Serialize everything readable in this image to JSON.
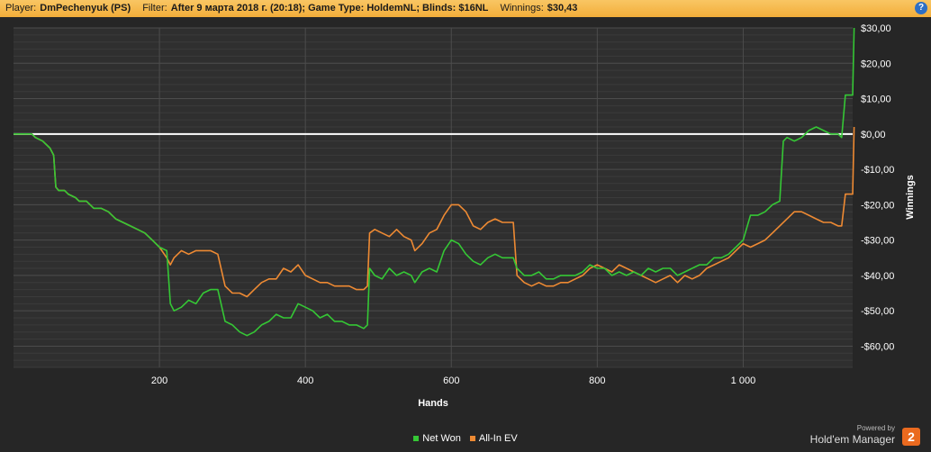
{
  "header": {
    "player_label": "Player:",
    "player_value": "DmPechenyuk (PS)",
    "filter_label": "Filter:",
    "filter_value": "After 9 марта 2018 г. (20:18); Game Type: HoldemNL; Blinds: $16NL",
    "winnings_label": "Winnings:",
    "winnings_value": "$30,43",
    "help_glyph": "?"
  },
  "brand": {
    "powered_by": "Powered by",
    "name": "Hold'em Manager",
    "badge": "2"
  },
  "chart_data": {
    "type": "line",
    "xlabel": "Hands",
    "ylabel": "Winnings",
    "xlim": [
      0,
      1150
    ],
    "ylim": [
      -66,
      30
    ],
    "x_ticks": [
      200,
      400,
      600,
      800,
      1000
    ],
    "x_tick_labels": [
      "200",
      "400",
      "600",
      "800",
      "1 000"
    ],
    "y_ticks": [
      30,
      20,
      10,
      0,
      -10,
      -20,
      -30,
      -40,
      -50,
      -60
    ],
    "y_tick_labels": [
      "$30,00",
      "$20,00",
      "$10,00",
      "$0,00",
      "-$10,00",
      "-$20,00",
      "-$30,00",
      "-$40,00",
      "-$50,00",
      "-$60,00"
    ],
    "zero_line": 0,
    "legend_position": "bottom",
    "grid": true,
    "series": [
      {
        "name": "Net Won",
        "color": "#35c735",
        "points": [
          [
            0,
            0
          ],
          [
            25,
            0
          ],
          [
            30,
            -1
          ],
          [
            40,
            -2
          ],
          [
            50,
            -4
          ],
          [
            55,
            -6
          ],
          [
            58,
            -15
          ],
          [
            62,
            -16
          ],
          [
            70,
            -16
          ],
          [
            75,
            -17
          ],
          [
            85,
            -18
          ],
          [
            90,
            -19
          ],
          [
            100,
            -19
          ],
          [
            110,
            -21
          ],
          [
            120,
            -21
          ],
          [
            130,
            -22
          ],
          [
            140,
            -24
          ],
          [
            150,
            -25
          ],
          [
            160,
            -26
          ],
          [
            170,
            -27
          ],
          [
            180,
            -28
          ],
          [
            190,
            -30
          ],
          [
            200,
            -32
          ],
          [
            210,
            -33
          ],
          [
            215,
            -48
          ],
          [
            220,
            -50
          ],
          [
            230,
            -49
          ],
          [
            240,
            -47
          ],
          [
            250,
            -48
          ],
          [
            260,
            -45
          ],
          [
            270,
            -44
          ],
          [
            280,
            -44
          ],
          [
            290,
            -53
          ],
          [
            300,
            -54
          ],
          [
            310,
            -56
          ],
          [
            320,
            -57
          ],
          [
            330,
            -56
          ],
          [
            340,
            -54
          ],
          [
            350,
            -53
          ],
          [
            360,
            -51
          ],
          [
            370,
            -52
          ],
          [
            380,
            -52
          ],
          [
            390,
            -48
          ],
          [
            400,
            -49
          ],
          [
            410,
            -50
          ],
          [
            420,
            -52
          ],
          [
            430,
            -51
          ],
          [
            440,
            -53
          ],
          [
            450,
            -53
          ],
          [
            460,
            -54
          ],
          [
            470,
            -54
          ],
          [
            480,
            -55
          ],
          [
            485,
            -54
          ],
          [
            488,
            -38
          ],
          [
            495,
            -40
          ],
          [
            505,
            -41
          ],
          [
            515,
            -38
          ],
          [
            525,
            -40
          ],
          [
            535,
            -39
          ],
          [
            545,
            -40
          ],
          [
            550,
            -42
          ],
          [
            560,
            -39
          ],
          [
            570,
            -38
          ],
          [
            580,
            -39
          ],
          [
            590,
            -33
          ],
          [
            600,
            -30
          ],
          [
            610,
            -31
          ],
          [
            620,
            -34
          ],
          [
            630,
            -36
          ],
          [
            640,
            -37
          ],
          [
            650,
            -35
          ],
          [
            660,
            -34
          ],
          [
            670,
            -35
          ],
          [
            685,
            -35
          ],
          [
            690,
            -38
          ],
          [
            700,
            -40
          ],
          [
            710,
            -40
          ],
          [
            720,
            -39
          ],
          [
            730,
            -41
          ],
          [
            740,
            -41
          ],
          [
            750,
            -40
          ],
          [
            760,
            -40
          ],
          [
            770,
            -40
          ],
          [
            780,
            -39
          ],
          [
            790,
            -37
          ],
          [
            800,
            -38
          ],
          [
            810,
            -38
          ],
          [
            820,
            -40
          ],
          [
            830,
            -39
          ],
          [
            840,
            -40
          ],
          [
            850,
            -39
          ],
          [
            860,
            -40
          ],
          [
            870,
            -38
          ],
          [
            880,
            -39
          ],
          [
            890,
            -38
          ],
          [
            900,
            -38
          ],
          [
            910,
            -40
          ],
          [
            920,
            -39
          ],
          [
            930,
            -38
          ],
          [
            940,
            -37
          ],
          [
            950,
            -37
          ],
          [
            960,
            -35
          ],
          [
            970,
            -35
          ],
          [
            980,
            -34
          ],
          [
            990,
            -32
          ],
          [
            1000,
            -30
          ],
          [
            1010,
            -23
          ],
          [
            1020,
            -23
          ],
          [
            1030,
            -22
          ],
          [
            1040,
            -20
          ],
          [
            1050,
            -19
          ],
          [
            1055,
            -2
          ],
          [
            1060,
            -1
          ],
          [
            1070,
            -2
          ],
          [
            1080,
            -1
          ],
          [
            1090,
            1
          ],
          [
            1100,
            2
          ],
          [
            1110,
            1
          ],
          [
            1120,
            0
          ],
          [
            1130,
            0
          ],
          [
            1135,
            -1
          ],
          [
            1140,
            11
          ],
          [
            1150,
            11
          ],
          [
            1152,
            30
          ]
        ]
      },
      {
        "name": "All-In EV",
        "color": "#ee8a33",
        "points": [
          [
            0,
            0
          ],
          [
            25,
            0
          ],
          [
            30,
            -1
          ],
          [
            40,
            -2
          ],
          [
            50,
            -4
          ],
          [
            55,
            -6
          ],
          [
            58,
            -15
          ],
          [
            62,
            -16
          ],
          [
            70,
            -16
          ],
          [
            75,
            -17
          ],
          [
            85,
            -18
          ],
          [
            90,
            -19
          ],
          [
            100,
            -19
          ],
          [
            110,
            -21
          ],
          [
            120,
            -21
          ],
          [
            130,
            -22
          ],
          [
            140,
            -24
          ],
          [
            150,
            -25
          ],
          [
            160,
            -26
          ],
          [
            170,
            -27
          ],
          [
            180,
            -28
          ],
          [
            190,
            -30
          ],
          [
            200,
            -32
          ],
          [
            210,
            -35
          ],
          [
            215,
            -37
          ],
          [
            220,
            -35
          ],
          [
            230,
            -33
          ],
          [
            240,
            -34
          ],
          [
            250,
            -33
          ],
          [
            260,
            -33
          ],
          [
            270,
            -33
          ],
          [
            280,
            -34
          ],
          [
            290,
            -43
          ],
          [
            300,
            -45
          ],
          [
            310,
            -45
          ],
          [
            320,
            -46
          ],
          [
            330,
            -44
          ],
          [
            340,
            -42
          ],
          [
            350,
            -41
          ],
          [
            360,
            -41
          ],
          [
            370,
            -38
          ],
          [
            380,
            -39
          ],
          [
            390,
            -37
          ],
          [
            400,
            -40
          ],
          [
            410,
            -41
          ],
          [
            420,
            -42
          ],
          [
            430,
            -42
          ],
          [
            440,
            -43
          ],
          [
            450,
            -43
          ],
          [
            460,
            -43
          ],
          [
            470,
            -44
          ],
          [
            480,
            -44
          ],
          [
            485,
            -43
          ],
          [
            488,
            -28
          ],
          [
            495,
            -27
          ],
          [
            505,
            -28
          ],
          [
            515,
            -29
          ],
          [
            525,
            -27
          ],
          [
            535,
            -29
          ],
          [
            545,
            -30
          ],
          [
            550,
            -33
          ],
          [
            560,
            -31
          ],
          [
            570,
            -28
          ],
          [
            580,
            -27
          ],
          [
            590,
            -23
          ],
          [
            600,
            -20
          ],
          [
            610,
            -20
          ],
          [
            620,
            -22
          ],
          [
            630,
            -26
          ],
          [
            640,
            -27
          ],
          [
            650,
            -25
          ],
          [
            660,
            -24
          ],
          [
            670,
            -25
          ],
          [
            685,
            -25
          ],
          [
            690,
            -40
          ],
          [
            700,
            -42
          ],
          [
            710,
            -43
          ],
          [
            720,
            -42
          ],
          [
            730,
            -43
          ],
          [
            740,
            -43
          ],
          [
            750,
            -42
          ],
          [
            760,
            -42
          ],
          [
            770,
            -41
          ],
          [
            780,
            -40
          ],
          [
            790,
            -38
          ],
          [
            800,
            -37
          ],
          [
            810,
            -38
          ],
          [
            820,
            -39
          ],
          [
            830,
            -37
          ],
          [
            840,
            -38
          ],
          [
            850,
            -39
          ],
          [
            860,
            -40
          ],
          [
            870,
            -41
          ],
          [
            880,
            -42
          ],
          [
            890,
            -41
          ],
          [
            900,
            -40
          ],
          [
            910,
            -42
          ],
          [
            920,
            -40
          ],
          [
            930,
            -41
          ],
          [
            940,
            -40
          ],
          [
            950,
            -38
          ],
          [
            960,
            -37
          ],
          [
            970,
            -36
          ],
          [
            980,
            -35
          ],
          [
            990,
            -33
          ],
          [
            1000,
            -31
          ],
          [
            1010,
            -32
          ],
          [
            1020,
            -31
          ],
          [
            1030,
            -30
          ],
          [
            1040,
            -28
          ],
          [
            1050,
            -26
          ],
          [
            1060,
            -24
          ],
          [
            1070,
            -22
          ],
          [
            1080,
            -22
          ],
          [
            1090,
            -23
          ],
          [
            1100,
            -24
          ],
          [
            1110,
            -25
          ],
          [
            1120,
            -25
          ],
          [
            1130,
            -26
          ],
          [
            1135,
            -26
          ],
          [
            1140,
            -17
          ],
          [
            1150,
            -17
          ],
          [
            1152,
            2
          ]
        ]
      }
    ]
  }
}
